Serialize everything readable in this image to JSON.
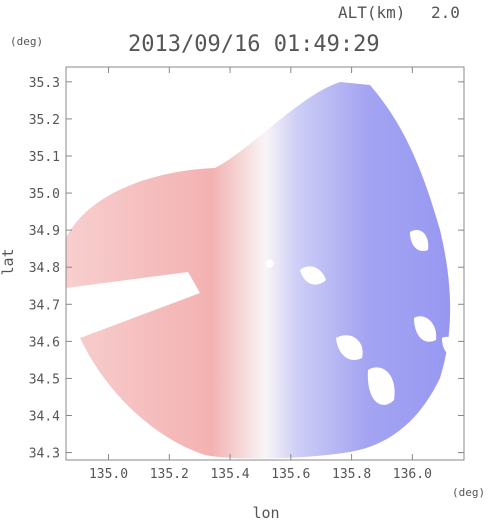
{
  "chart_data": {
    "type": "heatmap",
    "title": "2013/09/16 01:49:29",
    "altitude_label": "ALT(km)",
    "altitude_value": "2.0",
    "xlabel": "lon",
    "ylabel": "lat",
    "xunit": "(deg)",
    "yunit": "(deg)",
    "xlim": [
      134.86,
      136.17
    ],
    "ylim": [
      34.28,
      35.34
    ],
    "xticks": [
      "135.0",
      "135.2",
      "135.4",
      "135.6",
      "135.8",
      "136.0"
    ],
    "xtick_values": [
      135.0,
      135.2,
      135.4,
      135.6,
      135.8,
      136.0
    ],
    "yticks": [
      "34.3",
      "34.4",
      "34.5",
      "34.6",
      "34.7",
      "34.8",
      "34.9",
      "35.0",
      "35.1",
      "35.2",
      "35.3"
    ],
    "ytick_values": [
      34.3,
      34.4,
      34.5,
      34.6,
      34.7,
      34.8,
      34.9,
      35.0,
      35.1,
      35.2,
      35.3
    ],
    "radar_center": [
      135.53,
      34.81
    ],
    "positive_color": "#f08c8c",
    "negative_color": "#8c8cf0",
    "neutral_color": "#f4f4f8",
    "grid": false
  }
}
